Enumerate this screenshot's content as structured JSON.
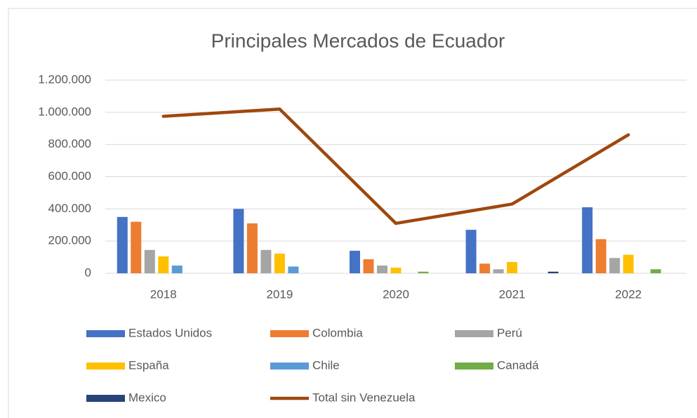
{
  "chart_data": {
    "type": "bar",
    "title": "Principales Mercados de Ecuador",
    "categories": [
      "2018",
      "2019",
      "2020",
      "2021",
      "2022"
    ],
    "series": [
      {
        "name": "Estados Unidos",
        "color": "#4472c4",
        "values": [
          350000,
          400000,
          140000,
          270000,
          410000
        ]
      },
      {
        "name": "Colombia",
        "color": "#ed7d31",
        "values": [
          320000,
          310000,
          87000,
          60000,
          212000
        ]
      },
      {
        "name": "Perú",
        "color": "#a5a5a5",
        "values": [
          145000,
          145000,
          48000,
          25000,
          95000
        ]
      },
      {
        "name": "España",
        "color": "#ffc000",
        "values": [
          105000,
          122000,
          35000,
          70000,
          115000
        ]
      },
      {
        "name": "Chile",
        "color": "#5b9bd5",
        "values": [
          48000,
          42000,
          0,
          0,
          0
        ]
      },
      {
        "name": "Canadá",
        "color": "#70ad47",
        "values": [
          0,
          0,
          10000,
          0,
          25000
        ]
      },
      {
        "name": "Mexico",
        "color": "#264478",
        "values": [
          0,
          0,
          0,
          10000,
          0
        ]
      },
      {
        "name": "Total sin Venezuela",
        "color": "#9e480e",
        "type": "line",
        "values": [
          975000,
          1020000,
          310000,
          430000,
          860000
        ]
      }
    ],
    "ylim": [
      0,
      1200000
    ],
    "yticks": [
      0,
      {
        "value": 200000,
        "label": "200.000"
      },
      {
        "value": 400000,
        "label": "400.000"
      },
      {
        "value": 600000,
        "label": "600.000"
      },
      {
        "value": 800000,
        "label": "800.000"
      },
      {
        "value": 1000000,
        "label": "1.000.000"
      },
      {
        "value": 1200000,
        "label": "1.200.000"
      }
    ],
    "grid": true,
    "legend": "bottom"
  }
}
